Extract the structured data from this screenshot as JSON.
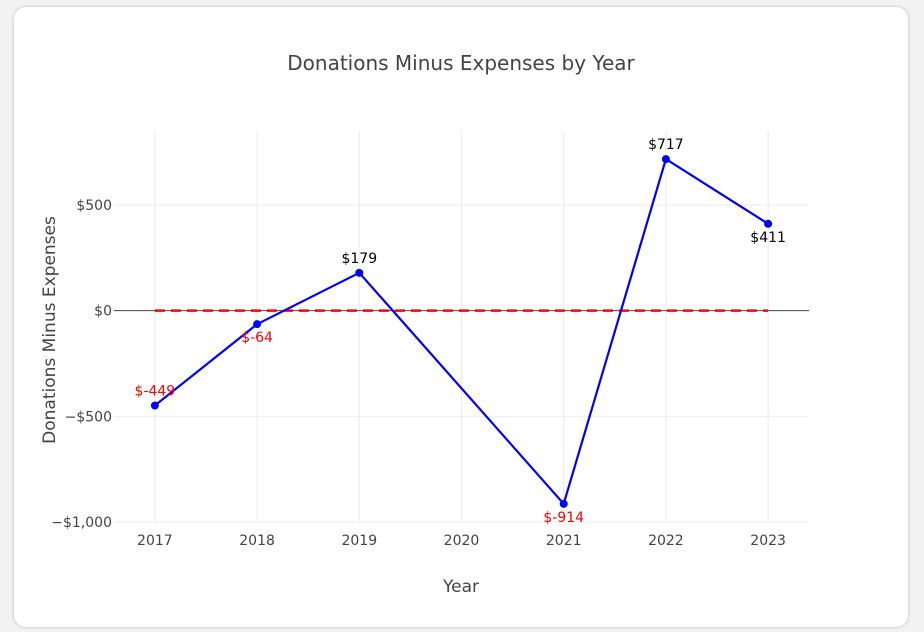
{
  "chart_data": {
    "type": "line",
    "title": "Donations Minus Expenses by Year",
    "xlabel": "Year",
    "ylabel": "Donations Minus Expenses",
    "x": [
      2017,
      2018,
      2019,
      2020,
      2021,
      2022,
      2023
    ],
    "x_tick_labels": [
      "2017",
      "2018",
      "2019",
      "2020",
      "2021",
      "2022",
      "2023"
    ],
    "ylim": [
      -1000,
      850
    ],
    "y_ticks": [
      -1000,
      -500,
      0,
      500
    ],
    "y_tick_labels": [
      "−$1,000",
      "−$500",
      "$0",
      "$500"
    ],
    "grid": true,
    "series": [
      {
        "name": "Donations Minus Expenses",
        "color": "#0000ff",
        "points": [
          {
            "x": 2017,
            "y": -449,
            "label": "$-449"
          },
          {
            "x": 2018,
            "y": -64,
            "label": "$-64"
          },
          {
            "x": 2019,
            "y": 179,
            "label": "$179"
          },
          {
            "x": 2021,
            "y": -914,
            "label": "$-914"
          },
          {
            "x": 2022,
            "y": 717,
            "label": "$717"
          },
          {
            "x": 2023,
            "y": 411,
            "label": "$411"
          }
        ]
      }
    ],
    "reference_line": {
      "y": 0,
      "color": "#ff0000",
      "style": "dashed",
      "x_from": 2017,
      "x_to": 2023
    },
    "positive_label_color": "#000000",
    "negative_label_color": "#ff0000"
  }
}
